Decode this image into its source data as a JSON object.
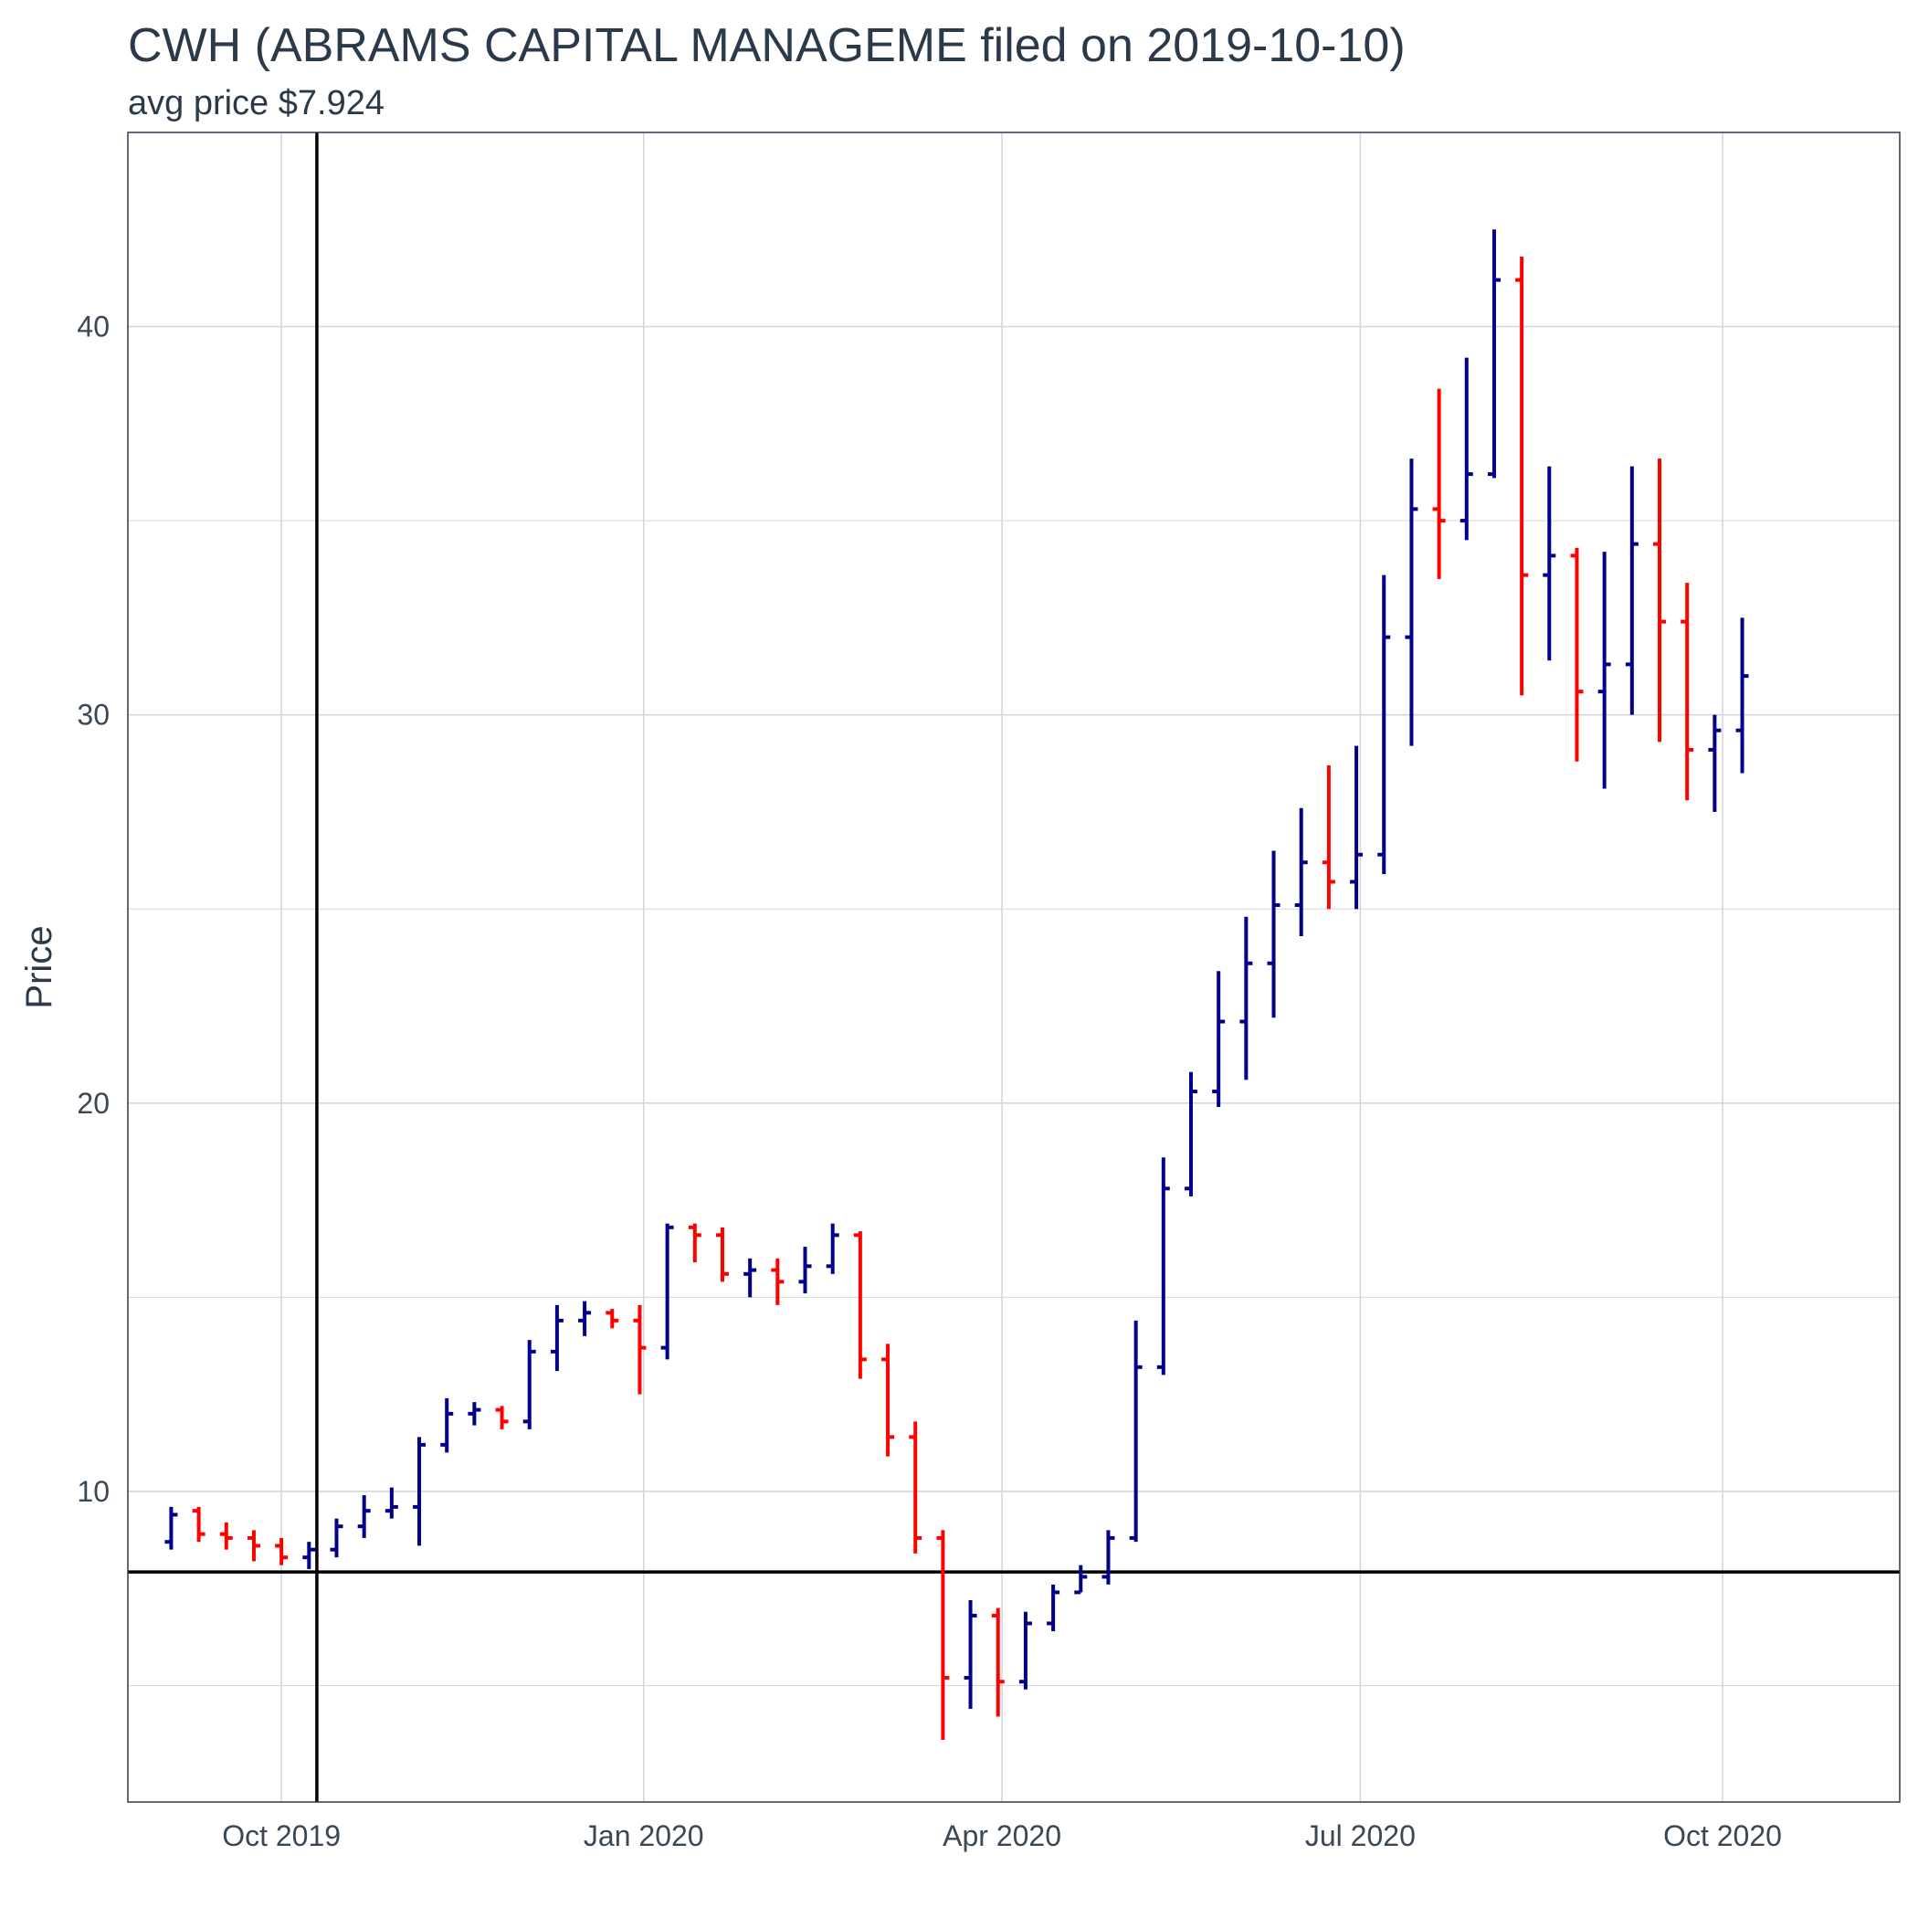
{
  "chart_data": {
    "type": "bar",
    "title": "CWH (ABRAMS CAPITAL MANAGEME filed on 2019-10-10)",
    "subtitle": "avg price $7.924",
    "xlabel": "",
    "ylabel": "Price",
    "x_ticks": [
      "Oct 2019",
      "Jan 2020",
      "Apr 2020",
      "Jul 2020",
      "Oct 2020"
    ],
    "x_tick_dates": [
      "2019-10-01",
      "2020-01-01",
      "2020-04-01",
      "2020-07-01",
      "2020-10-01"
    ],
    "y_ticks": [
      10,
      20,
      30,
      40
    ],
    "xlim": [
      "2019-08-23",
      "2020-11-15"
    ],
    "ylim": [
      2.0,
      45.0
    ],
    "grid": true,
    "legend": "none",
    "reference_lines": {
      "vertical_date": "2019-10-10",
      "horizontal_price": 7.924
    },
    "colors": {
      "up": "#00008b",
      "down": "#ff0000",
      "reference": "#000000",
      "grid": "#d3d7dc",
      "frame": "#2b3a4a"
    },
    "series": [
      {
        "dates": [
          "2019-09-03",
          "2019-09-10",
          "2019-09-17",
          "2019-09-24",
          "2019-10-01",
          "2019-10-08",
          "2019-10-15",
          "2019-10-22",
          "2019-10-29",
          "2019-11-05",
          "2019-11-12",
          "2019-11-19",
          "2019-11-26",
          "2019-12-03",
          "2019-12-10",
          "2019-12-17",
          "2019-12-24",
          "2019-12-31",
          "2020-01-07",
          "2020-01-14",
          "2020-01-21",
          "2020-01-28",
          "2020-02-04",
          "2020-02-11",
          "2020-02-18",
          "2020-02-25",
          "2020-03-03",
          "2020-03-10",
          "2020-03-17",
          "2020-03-24",
          "2020-03-31",
          "2020-04-07",
          "2020-04-14",
          "2020-04-21",
          "2020-04-28",
          "2020-05-05",
          "2020-05-12",
          "2020-05-19",
          "2020-05-26",
          "2020-06-02",
          "2020-06-09",
          "2020-06-16",
          "2020-06-23",
          "2020-06-30",
          "2020-07-07",
          "2020-07-14",
          "2020-07-21",
          "2020-07-28",
          "2020-08-04",
          "2020-08-11",
          "2020-08-18",
          "2020-08-25",
          "2020-09-01",
          "2020-09-08",
          "2020-09-15",
          "2020-09-22",
          "2020-09-29",
          "2020-10-06"
        ],
        "open": [
          8.7,
          9.5,
          8.9,
          8.8,
          8.6,
          8.3,
          8.5,
          9.1,
          9.5,
          9.6,
          11.2,
          12.0,
          12.1,
          11.8,
          13.6,
          14.4,
          14.6,
          14.4,
          13.7,
          16.8,
          16.6,
          15.6,
          15.7,
          15.4,
          15.8,
          16.6,
          13.4,
          11.4,
          8.8,
          5.2,
          6.8,
          5.1,
          6.6,
          7.4,
          7.8,
          8.8,
          13.2,
          17.8,
          20.3,
          22.1,
          23.6,
          25.1,
          26.2,
          25.7,
          26.4,
          32.0,
          35.3,
          35.0,
          36.2,
          41.2,
          33.6,
          34.1,
          30.6,
          31.3,
          34.4,
          32.4,
          29.1,
          29.6
        ],
        "close": [
          9.4,
          8.9,
          8.8,
          8.6,
          8.3,
          8.5,
          9.1,
          9.5,
          9.6,
          11.2,
          12.0,
          12.1,
          11.8,
          13.6,
          14.4,
          14.6,
          14.4,
          13.7,
          16.8,
          16.6,
          15.6,
          15.7,
          15.4,
          15.8,
          16.6,
          13.4,
          11.4,
          8.8,
          5.2,
          6.8,
          5.1,
          6.6,
          7.4,
          7.8,
          8.8,
          13.2,
          17.8,
          20.3,
          22.1,
          23.6,
          25.1,
          26.2,
          25.7,
          26.4,
          32.0,
          35.3,
          35.0,
          36.2,
          41.2,
          33.6,
          34.1,
          30.6,
          31.3,
          34.4,
          32.4,
          29.1,
          29.6,
          31.0
        ],
        "high": [
          9.6,
          9.6,
          9.2,
          9.0,
          8.8,
          8.7,
          9.3,
          9.9,
          10.1,
          11.4,
          12.4,
          12.3,
          12.2,
          13.9,
          14.8,
          14.9,
          14.7,
          14.8,
          16.9,
          16.9,
          16.8,
          16.0,
          16.0,
          16.3,
          16.9,
          16.7,
          13.8,
          11.8,
          9.0,
          7.2,
          7.0,
          6.9,
          7.6,
          8.1,
          9.0,
          14.4,
          18.6,
          20.8,
          23.4,
          24.8,
          26.5,
          27.6,
          28.7,
          29.2,
          33.6,
          36.6,
          38.4,
          39.2,
          42.5,
          41.8,
          36.4,
          34.3,
          34.2,
          36.4,
          36.6,
          33.4,
          30.0,
          32.5
        ],
        "low": [
          8.5,
          8.7,
          8.5,
          8.2,
          8.1,
          8.0,
          8.3,
          8.8,
          9.3,
          8.6,
          11.0,
          11.7,
          11.6,
          11.6,
          13.1,
          14.0,
          14.2,
          12.5,
          13.4,
          15.9,
          15.4,
          15.0,
          14.8,
          15.1,
          15.6,
          12.9,
          10.9,
          8.4,
          3.6,
          4.4,
          4.2,
          4.9,
          6.4,
          7.4,
          7.6,
          8.7,
          13.0,
          17.6,
          19.9,
          20.6,
          22.2,
          24.3,
          25.0,
          25.0,
          25.9,
          29.2,
          33.5,
          34.5,
          36.1,
          30.5,
          31.4,
          28.8,
          28.1,
          30.0,
          29.3,
          27.8,
          27.5,
          28.5
        ]
      }
    ]
  }
}
